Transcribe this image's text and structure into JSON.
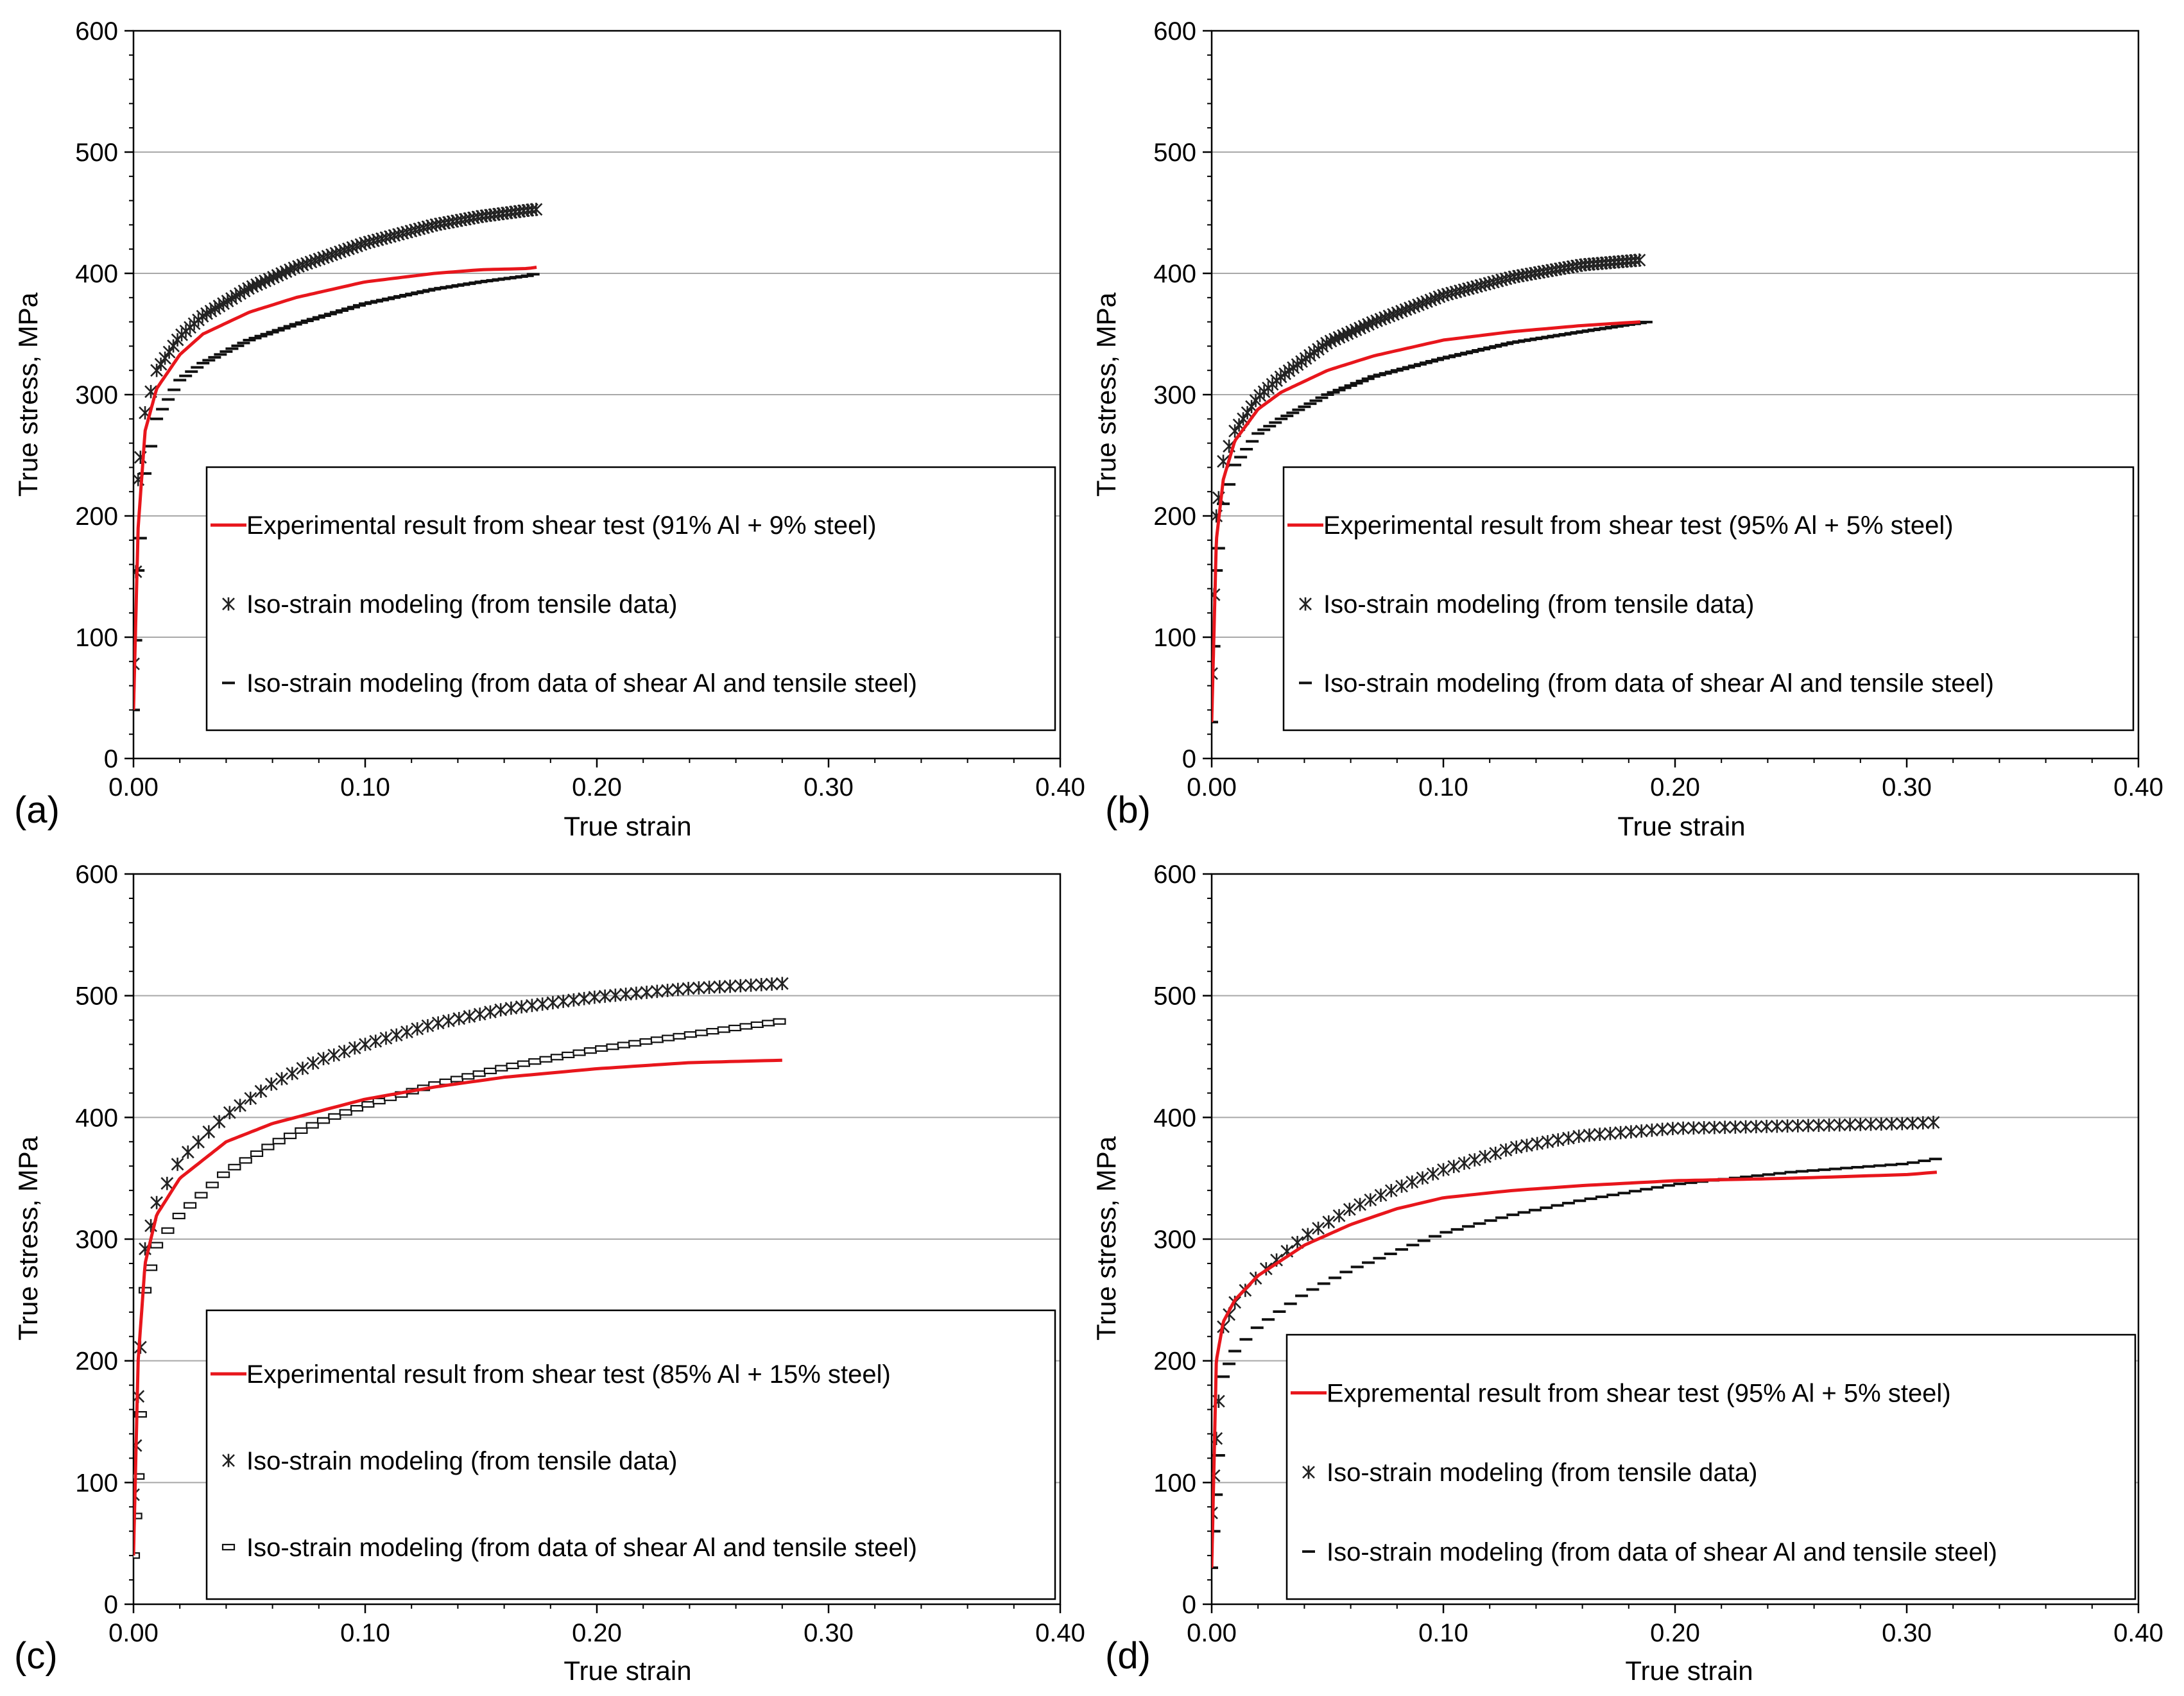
{
  "chart_data": [
    {
      "type": "line",
      "panel_label": "(a)",
      "xlabel": "True strain",
      "ylabel": "True stress, MPa",
      "xlim": [
        0,
        0.4
      ],
      "ylim": [
        0,
        600
      ],
      "xticks": [
        "0.00",
        "0.10",
        "0.20",
        "0.30",
        "0.40"
      ],
      "yticks": [
        "0",
        "100",
        "200",
        "300",
        "400",
        "500",
        "600"
      ],
      "grid": "horizontal",
      "legend_position": "lower-right",
      "series": [
        {
          "name": "Experimental result from shear test (91% Al + 9% steel)",
          "marker": "red-line",
          "color": "#e8161c",
          "x": [
            0,
            0.002,
            0.005,
            0.01,
            0.02,
            0.03,
            0.05,
            0.07,
            0.1,
            0.13,
            0.15,
            0.17,
            0.174
          ],
          "y": [
            40,
            190,
            270,
            305,
            333,
            350,
            368,
            380,
            393,
            400,
            403,
            404,
            405
          ]
        },
        {
          "name": "Iso-strain modeling (from tensile data)",
          "marker": "asterisk",
          "color": "#000000",
          "x": [
            0,
            0.002,
            0.005,
            0.01,
            0.02,
            0.03,
            0.05,
            0.07,
            0.1,
            0.13,
            0.15,
            0.17,
            0.175
          ],
          "y": [
            78,
            230,
            285,
            320,
            348,
            365,
            388,
            405,
            425,
            440,
            447,
            452,
            453
          ]
        },
        {
          "name": "Iso-strain modeling (from data of shear Al and tensile steel)",
          "marker": "dash",
          "color": "#000000",
          "x": [
            0,
            0.002,
            0.005,
            0.01,
            0.02,
            0.03,
            0.05,
            0.07,
            0.1,
            0.13,
            0.15,
            0.17,
            0.174
          ],
          "y": [
            40,
            155,
            235,
            280,
            312,
            326,
            345,
            358,
            375,
            387,
            393,
            398,
            400
          ]
        }
      ]
    },
    {
      "type": "line",
      "panel_label": "(b)",
      "xlabel": "True strain",
      "ylabel": "True stress, MPa",
      "xlim": [
        0,
        0.4
      ],
      "ylim": [
        0,
        600
      ],
      "xticks": [
        "0.00",
        "0.10",
        "0.20",
        "0.30",
        "0.40"
      ],
      "yticks": [
        "0",
        "100",
        "200",
        "300",
        "400",
        "500",
        "600"
      ],
      "grid": "horizontal",
      "legend_position": "lower-right",
      "series": [
        {
          "name": "Experimental result from shear test (95% Al + 5% steel)",
          "marker": "red-line",
          "color": "#e8161c",
          "x": [
            0,
            0.002,
            0.005,
            0.01,
            0.02,
            0.03,
            0.05,
            0.07,
            0.1,
            0.13,
            0.16,
            0.185
          ],
          "y": [
            30,
            180,
            230,
            262,
            288,
            302,
            320,
            332,
            345,
            352,
            357,
            360
          ]
        },
        {
          "name": "Iso-strain modeling (from tensile data)",
          "marker": "asterisk",
          "color": "#000000",
          "x": [
            0,
            0.002,
            0.005,
            0.01,
            0.02,
            0.03,
            0.05,
            0.07,
            0.1,
            0.13,
            0.16,
            0.185
          ],
          "y": [
            70,
            200,
            245,
            270,
            298,
            315,
            343,
            360,
            382,
            397,
            407,
            411
          ]
        },
        {
          "name": "Iso-strain modeling (from data of shear Al and tensile steel)",
          "marker": "dash",
          "color": "#000000",
          "x": [
            0,
            0.002,
            0.005,
            0.01,
            0.02,
            0.03,
            0.05,
            0.07,
            0.1,
            0.13,
            0.16,
            0.188
          ],
          "y": [
            30,
            155,
            210,
            242,
            268,
            280,
            300,
            315,
            330,
            343,
            352,
            360
          ]
        }
      ]
    },
    {
      "type": "line",
      "panel_label": "(c)",
      "xlabel": "True strain",
      "ylabel": "True stress, MPa",
      "xlim": [
        0,
        0.4
      ],
      "ylim": [
        0,
        600
      ],
      "xticks": [
        "0.00",
        "0.10",
        "0.20",
        "0.30",
        "0.40"
      ],
      "yticks": [
        "0",
        "100",
        "200",
        "300",
        "400",
        "500",
        "600"
      ],
      "grid": "horizontal",
      "legend_position": "lower-right",
      "series": [
        {
          "name": "Experimental result from shear test (85% Al + 15% steel)",
          "marker": "red-line",
          "color": "#e8161c",
          "x": [
            0,
            0.002,
            0.005,
            0.01,
            0.02,
            0.04,
            0.06,
            0.08,
            0.1,
            0.13,
            0.16,
            0.2,
            0.24,
            0.28
          ],
          "y": [
            40,
            200,
            280,
            320,
            350,
            380,
            395,
            405,
            415,
            425,
            433,
            440,
            445,
            447
          ]
        },
        {
          "name": "Iso-strain modeling (from tensile data)",
          "marker": "asterisk",
          "color": "#000000",
          "x": [
            0,
            0.005,
            0.01,
            0.02,
            0.04,
            0.06,
            0.08,
            0.1,
            0.13,
            0.16,
            0.2,
            0.24,
            0.28
          ],
          "y": [
            90,
            292,
            330,
            365,
            402,
            428,
            447,
            460,
            477,
            489,
            499,
            506,
            510
          ]
        },
        {
          "name": "Iso-strain modeling (from data of shear Al and tensile steel)",
          "marker": "square",
          "color": "#000000",
          "x": [
            0,
            0.002,
            0.005,
            0.01,
            0.02,
            0.04,
            0.06,
            0.08,
            0.1,
            0.13,
            0.16,
            0.2,
            0.24,
            0.283
          ],
          "y": [
            40,
            105,
            258,
            295,
            320,
            355,
            378,
            396,
            410,
            427,
            441,
            456,
            468,
            480
          ]
        }
      ]
    },
    {
      "type": "line",
      "panel_label": "(d)",
      "xlabel": "True strain",
      "ylabel": "True stress, MPa",
      "xlim": [
        0,
        0.4
      ],
      "ylim": [
        0,
        600
      ],
      "xticks": [
        "0.00",
        "0.10",
        "0.20",
        "0.30",
        "0.40"
      ],
      "yticks": [
        "0",
        "100",
        "200",
        "300",
        "400",
        "500",
        "600"
      ],
      "grid": "horizontal",
      "legend_position": "lower-right",
      "series": [
        {
          "name": "Expremental result from shear test (95% Al + 5% steel)",
          "marker": "red-line",
          "color": "#e8161c",
          "x": [
            0,
            0.002,
            0.005,
            0.01,
            0.02,
            0.04,
            0.06,
            0.08,
            0.1,
            0.13,
            0.16,
            0.2,
            0.25,
            0.3,
            0.313
          ],
          "y": [
            30,
            200,
            232,
            250,
            270,
            295,
            312,
            325,
            334,
            340,
            344,
            348,
            350,
            353,
            355
          ]
        },
        {
          "name": "Iso-strain modeling (from tensile data)",
          "marker": "asterisk",
          "color": "#000000",
          "x": [
            0,
            0.005,
            0.01,
            0.02,
            0.04,
            0.06,
            0.08,
            0.1,
            0.13,
            0.16,
            0.2,
            0.25,
            0.3,
            0.313
          ],
          "y": [
            75,
            228,
            248,
            270,
            302,
            325,
            342,
            357,
            375,
            385,
            391,
            393,
            395,
            396
          ]
        },
        {
          "name": "Iso-strain modeling (from data of shear Al and tensile steel)",
          "marker": "dash",
          "color": "#000000",
          "x": [
            0,
            0.002,
            0.005,
            0.01,
            0.02,
            0.04,
            0.06,
            0.08,
            0.1,
            0.13,
            0.16,
            0.2,
            0.25,
            0.3,
            0.313
          ],
          "y": [
            30,
            90,
            187,
            208,
            228,
            255,
            275,
            290,
            305,
            320,
            332,
            345,
            355,
            362,
            366
          ]
        }
      ]
    }
  ]
}
